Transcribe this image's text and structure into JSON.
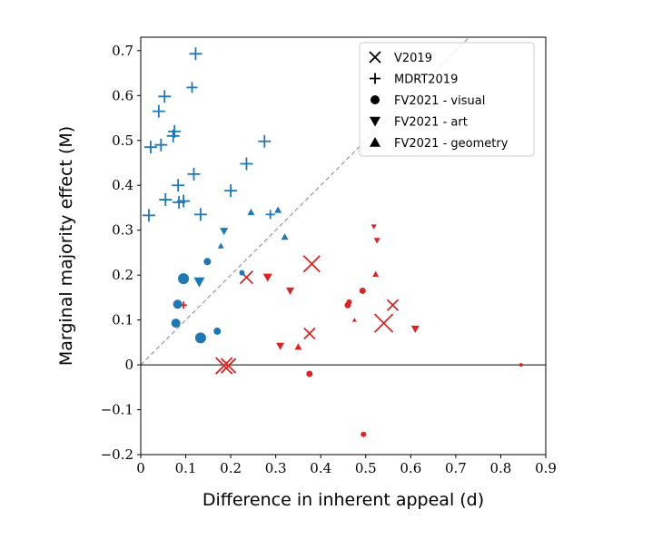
{
  "chart_data": {
    "type": "scatter",
    "title": "",
    "xlabel": "Difference in inherent appeal (d)",
    "ylabel": "Marginal majority effect (M)",
    "xlim": [
      0,
      0.9
    ],
    "ylim": [
      -0.2,
      0.73
    ],
    "xticks": [
      0,
      0.1,
      0.2,
      0.3,
      0.4,
      0.5,
      0.6,
      0.7,
      0.8,
      0.9
    ],
    "yticks": [
      -0.2,
      -0.1,
      0,
      0.1,
      0.2,
      0.3,
      0.4,
      0.5,
      0.6,
      0.7
    ],
    "xtick_labels": [
      "0",
      "0.1",
      "0.2",
      "0.3",
      "0.4",
      "0.5",
      "0.6",
      "0.7",
      "0.8",
      "0.9"
    ],
    "ytick_labels": [
      "−0.2",
      "−0.1",
      "0",
      "0.1",
      "0.2",
      "0.3",
      "0.4",
      "0.5",
      "0.6",
      "0.7"
    ],
    "reference_lines": [
      {
        "type": "diagonal",
        "description": "y = x",
        "style": "dashed",
        "color": "#999999"
      },
      {
        "type": "horizontal",
        "y": 0,
        "color": "#000000"
      }
    ],
    "legend": {
      "position": "top-right",
      "entries": [
        {
          "marker": "x",
          "label": "V2019"
        },
        {
          "marker": "plus",
          "label": "MDRT2019"
        },
        {
          "marker": "circle",
          "label": "FV2021 - visual"
        },
        {
          "marker": "triangle-down",
          "label": "FV2021 - art"
        },
        {
          "marker": "triangle-up",
          "label": "FV2021 - geometry"
        }
      ]
    },
    "colors": {
      "above_diagonal": "#1f77b4",
      "below_diagonal": "#d62728"
    },
    "series": [
      {
        "name": "V2019",
        "marker": "x",
        "points": [
          {
            "x": 0.185,
            "y": -0.002,
            "size": 9,
            "color": "#d62728"
          },
          {
            "x": 0.195,
            "y": -0.002,
            "size": 8,
            "color": "#d62728"
          },
          {
            "x": 0.235,
            "y": 0.195,
            "size": 7,
            "color": "#d62728"
          },
          {
            "x": 0.375,
            "y": 0.07,
            "size": 6,
            "color": "#d62728"
          },
          {
            "x": 0.38,
            "y": 0.225,
            "size": 9,
            "color": "#d62728"
          },
          {
            "x": 0.54,
            "y": 0.093,
            "size": 10,
            "color": "#d62728"
          },
          {
            "x": 0.56,
            "y": 0.133,
            "size": 6,
            "color": "#d62728"
          }
        ]
      },
      {
        "name": "MDRT2019",
        "marker": "plus",
        "points": [
          {
            "x": 0.018,
            "y": 0.333,
            "size": 7,
            "color": "#1f77b4"
          },
          {
            "x": 0.022,
            "y": 0.485,
            "size": 7,
            "color": "#1f77b4"
          },
          {
            "x": 0.04,
            "y": 0.565,
            "size": 7,
            "color": "#1f77b4"
          },
          {
            "x": 0.045,
            "y": 0.49,
            "size": 7,
            "color": "#1f77b4"
          },
          {
            "x": 0.053,
            "y": 0.598,
            "size": 7,
            "color": "#1f77b4"
          },
          {
            "x": 0.055,
            "y": 0.368,
            "size": 7,
            "color": "#1f77b4"
          },
          {
            "x": 0.072,
            "y": 0.51,
            "size": 7,
            "color": "#1f77b4"
          },
          {
            "x": 0.075,
            "y": 0.52,
            "size": 7,
            "color": "#1f77b4"
          },
          {
            "x": 0.083,
            "y": 0.4,
            "size": 7,
            "color": "#1f77b4"
          },
          {
            "x": 0.085,
            "y": 0.362,
            "size": 7,
            "color": "#1f77b4"
          },
          {
            "x": 0.095,
            "y": 0.365,
            "size": 7,
            "color": "#1f77b4"
          },
          {
            "x": 0.095,
            "y": 0.133,
            "size": 4,
            "color": "#d62728"
          },
          {
            "x": 0.114,
            "y": 0.618,
            "size": 6,
            "color": "#1f77b4"
          },
          {
            "x": 0.118,
            "y": 0.425,
            "size": 7,
            "color": "#1f77b4"
          },
          {
            "x": 0.122,
            "y": 0.693,
            "size": 7,
            "color": "#1f77b4"
          },
          {
            "x": 0.133,
            "y": 0.335,
            "size": 7,
            "color": "#1f77b4"
          },
          {
            "x": 0.2,
            "y": 0.388,
            "size": 7,
            "color": "#1f77b4"
          },
          {
            "x": 0.235,
            "y": 0.448,
            "size": 7,
            "color": "#1f77b4"
          },
          {
            "x": 0.275,
            "y": 0.498,
            "size": 7,
            "color": "#1f77b4"
          },
          {
            "x": 0.288,
            "y": 0.335,
            "size": 5,
            "color": "#1f77b4"
          }
        ]
      },
      {
        "name": "FV2021 - visual",
        "marker": "circle",
        "points": [
          {
            "x": 0.078,
            "y": 0.093,
            "size": 5,
            "color": "#1f77b4"
          },
          {
            "x": 0.082,
            "y": 0.135,
            "size": 5,
            "color": "#1f77b4"
          },
          {
            "x": 0.095,
            "y": 0.192,
            "size": 6,
            "color": "#1f77b4"
          },
          {
            "x": 0.133,
            "y": 0.06,
            "size": 6,
            "color": "#1f77b4"
          },
          {
            "x": 0.148,
            "y": 0.23,
            "size": 4,
            "color": "#1f77b4"
          },
          {
            "x": 0.17,
            "y": 0.075,
            "size": 4,
            "color": "#1f77b4"
          },
          {
            "x": 0.225,
            "y": 0.205,
            "size": 3,
            "color": "#1f77b4"
          },
          {
            "x": 0.375,
            "y": -0.02,
            "size": 3.5,
            "color": "#d62728"
          },
          {
            "x": 0.46,
            "y": 0.133,
            "size": 3.5,
            "color": "#d62728"
          },
          {
            "x": 0.463,
            "y": 0.14,
            "size": 3,
            "color": "#d62728"
          },
          {
            "x": 0.493,
            "y": 0.165,
            "size": 3.5,
            "color": "#d62728"
          },
          {
            "x": 0.495,
            "y": -0.155,
            "size": 3,
            "color": "#d62728"
          },
          {
            "x": 0.845,
            "y": 0.0,
            "size": 2,
            "color": "#d62728"
          }
        ]
      },
      {
        "name": "FV2021 - art",
        "marker": "triangle-down",
        "points": [
          {
            "x": 0.13,
            "y": 0.185,
            "size": 6,
            "color": "#1f77b4"
          },
          {
            "x": 0.185,
            "y": 0.298,
            "size": 4.5,
            "color": "#1f77b4"
          },
          {
            "x": 0.282,
            "y": 0.195,
            "size": 5,
            "color": "#d62728"
          },
          {
            "x": 0.31,
            "y": 0.042,
            "size": 4.5,
            "color": "#d62728"
          },
          {
            "x": 0.332,
            "y": 0.165,
            "size": 4.5,
            "color": "#d62728"
          },
          {
            "x": 0.518,
            "y": 0.308,
            "size": 3,
            "color": "#d62728"
          },
          {
            "x": 0.525,
            "y": 0.277,
            "size": 3.5,
            "color": "#d62728"
          },
          {
            "x": 0.61,
            "y": 0.08,
            "size": 4.5,
            "color": "#d62728"
          }
        ]
      },
      {
        "name": "FV2021 - geometry",
        "marker": "triangle-up",
        "points": [
          {
            "x": 0.178,
            "y": 0.265,
            "size": 3.5,
            "color": "#1f77b4"
          },
          {
            "x": 0.245,
            "y": 0.34,
            "size": 4,
            "color": "#1f77b4"
          },
          {
            "x": 0.305,
            "y": 0.345,
            "size": 4,
            "color": "#1f77b4"
          },
          {
            "x": 0.32,
            "y": 0.285,
            "size": 4,
            "color": "#1f77b4"
          },
          {
            "x": 0.35,
            "y": 0.04,
            "size": 4,
            "color": "#d62728"
          },
          {
            "x": 0.475,
            "y": 0.1,
            "size": 2.5,
            "color": "#d62728"
          },
          {
            "x": 0.522,
            "y": 0.202,
            "size": 3.5,
            "color": "#d62728"
          }
        ]
      }
    ]
  }
}
